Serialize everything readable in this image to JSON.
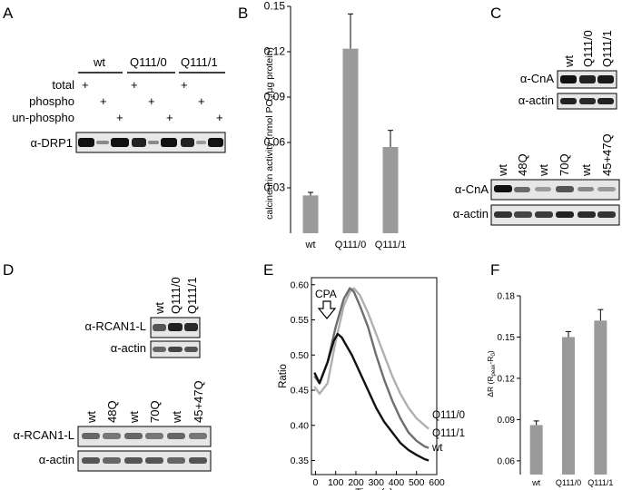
{
  "panels": {
    "A": {
      "letter": "A",
      "groups": [
        "wt",
        "Q111/0",
        "Q111/1"
      ],
      "row_labels": [
        "total",
        "phospho",
        "un-phospho"
      ],
      "plus": "+",
      "antibody": "α-DRP1"
    },
    "C": {
      "letter": "C",
      "top_lanes": [
        "wt",
        "Q111/0",
        "Q111/1"
      ],
      "top_rows": [
        "α-CnA",
        "α-actin"
      ],
      "bottom_lanes": [
        "wt",
        "48Q",
        "wt",
        "70Q",
        "wt",
        "45+47Q"
      ],
      "bottom_rows": [
        "α-CnA",
        "α-actin"
      ]
    },
    "D": {
      "letter": "D",
      "top_lanes": [
        "wt",
        "Q111/0",
        "Q111/1"
      ],
      "top_rows": [
        "α-RCAN1-L",
        "α-actin"
      ],
      "bottom_lanes": [
        "wt",
        "48Q",
        "wt",
        "70Q",
        "wt",
        "45+47Q"
      ],
      "bottom_rows": [
        "α-RCAN1-L",
        "α-actin"
      ]
    },
    "E": {
      "letter": "E",
      "annotation": "CPA",
      "line_labels": [
        "Q111/0",
        "Q111/1",
        "wt"
      ]
    }
  },
  "chart_data": [
    {
      "id": "B",
      "letter": "B",
      "type": "bar",
      "categories": [
        "wt",
        "Q111/0",
        "Q111/1"
      ],
      "values": [
        0.025,
        0.122,
        0.057
      ],
      "errors": [
        0.002,
        0.023,
        0.011
      ],
      "ylabel": "calcineurin activity (nmol PO4/µg protein)",
      "ylim": [
        0,
        0.15
      ],
      "yticks": [
        "0.03",
        "0.06",
        "0.09",
        "0.12",
        "0.15"
      ],
      "bar_color": "#9a9a9a"
    },
    {
      "id": "E",
      "type": "line",
      "xlabel": "Time (s)",
      "ylabel": "Ratio",
      "xlim": [
        -20,
        600
      ],
      "ylim": [
        0.33,
        0.61
      ],
      "xticks": [
        "0",
        "100",
        "200",
        "300",
        "400",
        "500",
        "600"
      ],
      "yticks": [
        "0.35",
        "0.40",
        "0.45",
        "0.50",
        "0.55",
        "0.60"
      ],
      "series": [
        {
          "name": "Q111/0",
          "color": "#b0b0b0",
          "x": [
            -5,
            20,
            60,
            100,
            140,
            170,
            190,
            220,
            260,
            300,
            340,
            380,
            420,
            460,
            500,
            540,
            560
          ],
          "y": [
            0.455,
            0.445,
            0.46,
            0.52,
            0.57,
            0.59,
            0.595,
            0.585,
            0.56,
            0.53,
            0.5,
            0.47,
            0.445,
            0.425,
            0.41,
            0.4,
            0.395
          ]
        },
        {
          "name": "Q111/1",
          "color": "#6e6e6e",
          "x": [
            -5,
            20,
            60,
            100,
            140,
            170,
            190,
            220,
            260,
            300,
            340,
            380,
            420,
            460,
            500,
            540,
            560
          ],
          "y": [
            0.47,
            0.46,
            0.49,
            0.54,
            0.58,
            0.595,
            0.59,
            0.57,
            0.54,
            0.5,
            0.465,
            0.435,
            0.41,
            0.39,
            0.378,
            0.37,
            0.368
          ]
        },
        {
          "name": "wt",
          "color": "#111111",
          "x": [
            -5,
            20,
            60,
            90,
            110,
            130,
            150,
            180,
            220,
            260,
            300,
            340,
            380,
            420,
            460,
            500,
            540,
            560
          ],
          "y": [
            0.475,
            0.46,
            0.49,
            0.52,
            0.53,
            0.525,
            0.515,
            0.5,
            0.475,
            0.45,
            0.425,
            0.405,
            0.39,
            0.375,
            0.365,
            0.358,
            0.352,
            0.35
          ]
        }
      ]
    },
    {
      "id": "F",
      "letter": "F",
      "type": "bar",
      "categories": [
        "wt",
        "Q111/0",
        "Q111/1"
      ],
      "values": [
        0.086,
        0.15,
        0.162
      ],
      "errors": [
        0.003,
        0.004,
        0.008
      ],
      "ylabel": "ΔR (Rpeak-R0)",
      "ylim": [
        0.05,
        0.18
      ],
      "yticks": [
        "0.06",
        "0.09",
        "0.12",
        "0.15",
        "0.18"
      ],
      "bar_color": "#9a9a9a"
    }
  ]
}
